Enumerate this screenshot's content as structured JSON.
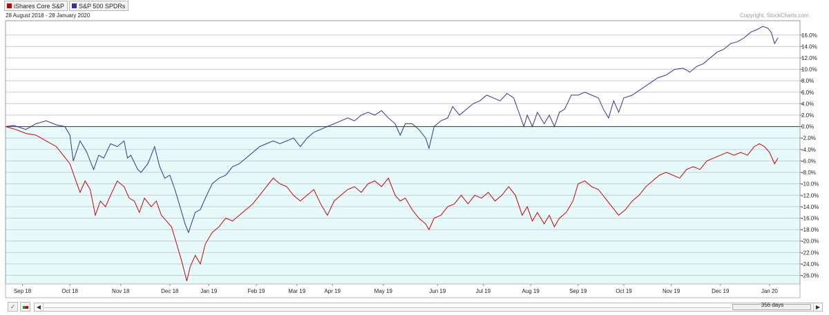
{
  "legend": [
    {
      "label": "iShares Core S&P",
      "color": "#cc0000"
    },
    {
      "label": "S&P 500 SPDRs",
      "color": "#3a2f9a"
    }
  ],
  "date_range": "28 August 2018 - 28 January 2020",
  "copyright": "Copyright, StockCharts.com",
  "days_label": "356 days",
  "chart_data": {
    "type": "line",
    "title": "",
    "xlabel": "",
    "ylabel": "",
    "x_tick_labels": [
      "Sep 18",
      "Oct 18",
      "Nov 18",
      "Dec 18",
      "Jan 19",
      "Feb 19",
      "Mar 19",
      "Apr 19",
      "May 19",
      "Jun 19",
      "Jul 19",
      "Aug 19",
      "Sep 19",
      "Oct 19",
      "Nov 19",
      "Dec 19",
      "Jan 20"
    ],
    "x_ticks_at_day": [
      10,
      38,
      68,
      97,
      120,
      148,
      172,
      193,
      223,
      255,
      282,
      310,
      338,
      365,
      393,
      422,
      451
    ],
    "x_range": [
      0,
      469
    ],
    "ylim": [
      -27.5,
      18.5
    ],
    "y_tick_values": [
      16,
      14,
      12,
      10,
      8,
      6,
      4,
      2,
      0,
      -2,
      -4,
      -6,
      -8,
      -10,
      -12,
      -14,
      -16,
      -18,
      -20,
      -22,
      -24,
      -26
    ],
    "y_tick_labels": [
      "16.0%",
      "14.0%",
      "12.0%",
      "10.0%",
      "8.0%",
      "6.0%",
      "4.0%",
      "2.0%",
      "0.0%",
      "-2.0%",
      "-4.0%",
      "-6.0%",
      "-8.0%",
      "-10.0%",
      "-12.0%",
      "-14.0%",
      "-16.0%",
      "-18.0%",
      "-20.0%",
      "-22.0%",
      "-24.0%",
      "-26.0%"
    ],
    "grid": true,
    "negative_region_fill": "#e6fafa",
    "zero_line_color": "#333333",
    "series": [
      {
        "name": "S&P 500 SPDRs",
        "color": "#3a2f9a",
        "points": [
          [
            0,
            0
          ],
          [
            5,
            0.2
          ],
          [
            12,
            -0.5
          ],
          [
            18,
            0.5
          ],
          [
            24,
            1.0
          ],
          [
            30,
            0.3
          ],
          [
            35,
            0
          ],
          [
            38,
            -1.5
          ],
          [
            40,
            -6.0
          ],
          [
            44,
            -2.5
          ],
          [
            48,
            -4.5
          ],
          [
            52,
            -7.5
          ],
          [
            55,
            -5.0
          ],
          [
            58,
            -5.5
          ],
          [
            62,
            -3.0
          ],
          [
            66,
            -3.5
          ],
          [
            70,
            -2.5
          ],
          [
            72,
            -5.5
          ],
          [
            74,
            -5.0
          ],
          [
            78,
            -7.5
          ],
          [
            80,
            -8.0
          ],
          [
            84,
            -6.5
          ],
          [
            88,
            -3.5
          ],
          [
            91,
            -7.0
          ],
          [
            94,
            -9.0
          ],
          [
            97,
            -8.5
          ],
          [
            100,
            -11.0
          ],
          [
            103,
            -14.0
          ],
          [
            106,
            -17.0
          ],
          [
            108,
            -18.5
          ],
          [
            112,
            -15.0
          ],
          [
            115,
            -14.5
          ],
          [
            118,
            -12.5
          ],
          [
            122,
            -10.0
          ],
          [
            126,
            -9.0
          ],
          [
            130,
            -8.5
          ],
          [
            134,
            -7.0
          ],
          [
            138,
            -6.5
          ],
          [
            142,
            -5.5
          ],
          [
            146,
            -4.5
          ],
          [
            150,
            -3.5
          ],
          [
            154,
            -3.0
          ],
          [
            158,
            -2.5
          ],
          [
            162,
            -3.0
          ],
          [
            166,
            -2.5
          ],
          [
            170,
            -2.0
          ],
          [
            174,
            -3.5
          ],
          [
            178,
            -2.0
          ],
          [
            182,
            -1.0
          ],
          [
            186,
            -0.5
          ],
          [
            190,
            0
          ],
          [
            194,
            0.5
          ],
          [
            198,
            1.0
          ],
          [
            202,
            1.5
          ],
          [
            206,
            1.0
          ],
          [
            210,
            2.0
          ],
          [
            214,
            2.5
          ],
          [
            218,
            2.0
          ],
          [
            222,
            2.8
          ],
          [
            226,
            1.5
          ],
          [
            230,
            0.5
          ],
          [
            233,
            -1.5
          ],
          [
            236,
            0.5
          ],
          [
            240,
            0.5
          ],
          [
            244,
            -0.5
          ],
          [
            248,
            -2.0
          ],
          [
            250,
            -3.8
          ],
          [
            253,
            0
          ],
          [
            257,
            1.0
          ],
          [
            261,
            1.5
          ],
          [
            264,
            3.5
          ],
          [
            268,
            2.0
          ],
          [
            272,
            3.0
          ],
          [
            276,
            4.0
          ],
          [
            280,
            4.5
          ],
          [
            284,
            5.5
          ],
          [
            288,
            5.0
          ],
          [
            292,
            4.5
          ],
          [
            296,
            5.8
          ],
          [
            300,
            5.0
          ],
          [
            303,
            2.5
          ],
          [
            306,
            0
          ],
          [
            308,
            2.0
          ],
          [
            311,
            0
          ],
          [
            314,
            2.5
          ],
          [
            318,
            0.5
          ],
          [
            321,
            2.0
          ],
          [
            324,
            0
          ],
          [
            327,
            2.5
          ],
          [
            330,
            3.0
          ],
          [
            334,
            5.5
          ],
          [
            338,
            5.5
          ],
          [
            342,
            6.0
          ],
          [
            346,
            5.5
          ],
          [
            350,
            5.0
          ],
          [
            353,
            3.0
          ],
          [
            356,
            1.5
          ],
          [
            359,
            4.5
          ],
          [
            362,
            2.5
          ],
          [
            365,
            5.0
          ],
          [
            370,
            5.5
          ],
          [
            375,
            6.5
          ],
          [
            380,
            7.5
          ],
          [
            385,
            8.5
          ],
          [
            390,
            9.0
          ],
          [
            395,
            10.0
          ],
          [
            400,
            10.2
          ],
          [
            404,
            9.5
          ],
          [
            408,
            10.5
          ],
          [
            412,
            11.0
          ],
          [
            416,
            12.0
          ],
          [
            420,
            13.0
          ],
          [
            424,
            13.5
          ],
          [
            428,
            14.5
          ],
          [
            432,
            14.8
          ],
          [
            436,
            15.5
          ],
          [
            440,
            16.5
          ],
          [
            444,
            17.0
          ],
          [
            447,
            17.5
          ],
          [
            450,
            17.2
          ],
          [
            452,
            16.5
          ],
          [
            454,
            14.5
          ],
          [
            456,
            15.5
          ]
        ]
      },
      {
        "name": "iShares Core S&P",
        "color": "#cc0000",
        "points": [
          [
            0,
            0
          ],
          [
            6,
            -0.5
          ],
          [
            12,
            -1.2
          ],
          [
            18,
            -1.5
          ],
          [
            24,
            -2.5
          ],
          [
            30,
            -3.5
          ],
          [
            34,
            -5.0
          ],
          [
            38,
            -6.5
          ],
          [
            41,
            -9.0
          ],
          [
            44,
            -11.5
          ],
          [
            47,
            -9.5
          ],
          [
            50,
            -11.0
          ],
          [
            53,
            -15.5
          ],
          [
            56,
            -13.0
          ],
          [
            59,
            -14.0
          ],
          [
            62,
            -12.0
          ],
          [
            66,
            -9.5
          ],
          [
            70,
            -10.5
          ],
          [
            73,
            -12.5
          ],
          [
            76,
            -13.0
          ],
          [
            79,
            -15.0
          ],
          [
            82,
            -12.5
          ],
          [
            86,
            -14.0
          ],
          [
            89,
            -13.0
          ],
          [
            92,
            -15.5
          ],
          [
            95,
            -16.5
          ],
          [
            98,
            -17.5
          ],
          [
            101,
            -20.5
          ],
          [
            104,
            -23.5
          ],
          [
            107,
            -27.0
          ],
          [
            109,
            -24.5
          ],
          [
            112,
            -22.5
          ],
          [
            115,
            -24.0
          ],
          [
            118,
            -20.5
          ],
          [
            122,
            -18.5
          ],
          [
            126,
            -17.5
          ],
          [
            130,
            -16.0
          ],
          [
            134,
            -16.5
          ],
          [
            138,
            -15.5
          ],
          [
            142,
            -14.5
          ],
          [
            146,
            -13.5
          ],
          [
            150,
            -12.0
          ],
          [
            154,
            -10.5
          ],
          [
            158,
            -9.0
          ],
          [
            162,
            -10.0
          ],
          [
            166,
            -10.5
          ],
          [
            170,
            -12.0
          ],
          [
            174,
            -13.0
          ],
          [
            178,
            -12.0
          ],
          [
            182,
            -11.0
          ],
          [
            186,
            -13.5
          ],
          [
            190,
            -15.5
          ],
          [
            194,
            -13.0
          ],
          [
            198,
            -12.0
          ],
          [
            202,
            -11.0
          ],
          [
            206,
            -10.5
          ],
          [
            210,
            -11.5
          ],
          [
            214,
            -10.0
          ],
          [
            218,
            -9.5
          ],
          [
            222,
            -10.5
          ],
          [
            226,
            -9.0
          ],
          [
            230,
            -12.0
          ],
          [
            233,
            -13.0
          ],
          [
            236,
            -12.5
          ],
          [
            240,
            -14.5
          ],
          [
            244,
            -16.0
          ],
          [
            248,
            -17.0
          ],
          [
            250,
            -18.0
          ],
          [
            253,
            -16.0
          ],
          [
            257,
            -15.5
          ],
          [
            261,
            -14.0
          ],
          [
            265,
            -13.5
          ],
          [
            269,
            -12.0
          ],
          [
            273,
            -13.5
          ],
          [
            277,
            -12.0
          ],
          [
            281,
            -12.5
          ],
          [
            285,
            -11.5
          ],
          [
            289,
            -13.0
          ],
          [
            293,
            -12.0
          ],
          [
            297,
            -10.5
          ],
          [
            301,
            -12.0
          ],
          [
            305,
            -15.5
          ],
          [
            308,
            -14.0
          ],
          [
            311,
            -16.5
          ],
          [
            314,
            -15.0
          ],
          [
            318,
            -17.0
          ],
          [
            321,
            -15.5
          ],
          [
            324,
            -17.5
          ],
          [
            327,
            -16.0
          ],
          [
            331,
            -15.0
          ],
          [
            335,
            -13.0
          ],
          [
            338,
            -10.0
          ],
          [
            342,
            -9.5
          ],
          [
            346,
            -10.5
          ],
          [
            350,
            -11.0
          ],
          [
            354,
            -12.5
          ],
          [
            358,
            -14.0
          ],
          [
            362,
            -15.5
          ],
          [
            366,
            -14.5
          ],
          [
            370,
            -13.0
          ],
          [
            374,
            -12.0
          ],
          [
            378,
            -10.5
          ],
          [
            382,
            -9.5
          ],
          [
            386,
            -8.5
          ],
          [
            390,
            -8.0
          ],
          [
            394,
            -8.5
          ],
          [
            398,
            -9.0
          ],
          [
            402,
            -7.5
          ],
          [
            406,
            -7.0
          ],
          [
            410,
            -7.5
          ],
          [
            414,
            -6.0
          ],
          [
            418,
            -5.5
          ],
          [
            422,
            -5.0
          ],
          [
            426,
            -4.5
          ],
          [
            430,
            -5.0
          ],
          [
            434,
            -4.5
          ],
          [
            438,
            -5.0
          ],
          [
            442,
            -3.5
          ],
          [
            445,
            -3.0
          ],
          [
            448,
            -3.5
          ],
          [
            451,
            -4.5
          ],
          [
            454,
            -6.5
          ],
          [
            456,
            -5.5
          ]
        ]
      }
    ]
  }
}
